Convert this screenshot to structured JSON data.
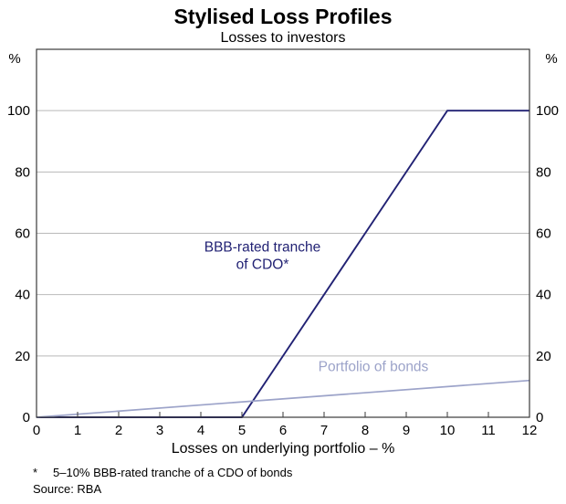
{
  "title": "Stylised Loss Profiles",
  "subtitle": "Losses to investors",
  "footer": {
    "xlabel": "Losses on underlying portfolio – %",
    "footnote_marker": "*",
    "footnote_text": "5–10% BBB-rated tranche of a CDO of bonds",
    "source": "Source: RBA"
  },
  "chart_data": {
    "type": "line",
    "title": "Stylised Loss Profiles",
    "subtitle": "Losses to investors",
    "xlabel": "Losses on underlying portfolio – %",
    "ylabel": "%",
    "xlim": [
      0,
      12
    ],
    "ylim": [
      0,
      120
    ],
    "xticks": [
      0,
      1,
      2,
      3,
      4,
      5,
      6,
      7,
      8,
      9,
      10,
      11,
      12
    ],
    "yticks": [
      0,
      20,
      40,
      60,
      80,
      100
    ],
    "grid": "horizontal",
    "legend": "inline-annotations",
    "frame_color": "#3a3a3a",
    "grid_color": "#b9b9b9",
    "series": [
      {
        "name": "BBB-rated tranche of CDO*",
        "color": "#222274",
        "stroke_width": 1.9,
        "x": [
          0,
          5,
          10,
          12
        ],
        "y": [
          0,
          0,
          100,
          100
        ],
        "label_lines": [
          "BBB-rated tranche",
          "of CDO*"
        ],
        "label_pos": {
          "x": 5.5,
          "y": 54
        }
      },
      {
        "name": "Portfolio of bonds",
        "color": "#9ca3c9",
        "stroke_width": 1.7,
        "x": [
          0,
          12
        ],
        "y": [
          0,
          12
        ],
        "label_lines": [
          "Portfolio of bonds"
        ],
        "label_pos": {
          "x": 8.2,
          "y": 15
        }
      }
    ]
  }
}
